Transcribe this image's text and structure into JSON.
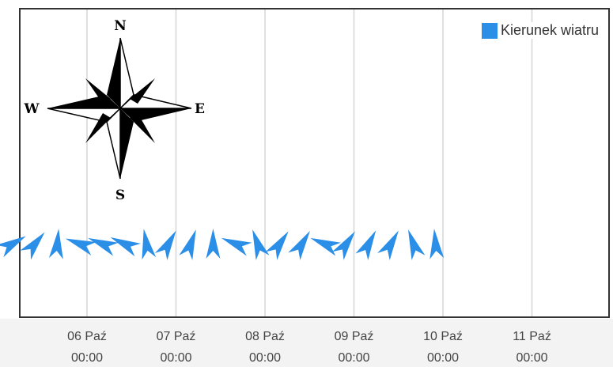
{
  "chart_data": {
    "type": "scatter",
    "title": "",
    "xlabel": "",
    "ylabel": "",
    "x_ticks": [
      {
        "day": "06 Paź",
        "time": "00:00"
      },
      {
        "day": "07 Paź",
        "time": "00:00"
      },
      {
        "day": "08 Paź",
        "time": "00:00"
      },
      {
        "day": "09 Paź",
        "time": "00:00"
      },
      {
        "day": "10 Paź",
        "time": "00:00"
      },
      {
        "day": "11 Paź",
        "time": "00:00"
      }
    ],
    "series": [
      {
        "name": "Kierunek wiatru",
        "color": "#2b8fe8",
        "points": [
          {
            "t": "05 Paź 04:00",
            "direction_deg": 240
          },
          {
            "t": "05 Paź 10:00",
            "direction_deg": 220
          },
          {
            "t": "05 Paź 16:00",
            "direction_deg": 185
          },
          {
            "t": "05 Paź 22:00",
            "direction_deg": 110
          },
          {
            "t": "06 Paź 04:00",
            "direction_deg": 112
          },
          {
            "t": "06 Paź 10:00",
            "direction_deg": 115
          },
          {
            "t": "06 Paź 16:00",
            "direction_deg": 170
          },
          {
            "t": "06 Paź 22:00",
            "direction_deg": 210
          },
          {
            "t": "07 Paź 04:00",
            "direction_deg": 200
          },
          {
            "t": "07 Paź 10:00",
            "direction_deg": 180
          },
          {
            "t": "07 Paź 16:00",
            "direction_deg": 112
          },
          {
            "t": "07 Paź 22:00",
            "direction_deg": 160
          },
          {
            "t": "08 Paź 04:00",
            "direction_deg": 215
          },
          {
            "t": "08 Paź 10:00",
            "direction_deg": 212
          },
          {
            "t": "08 Paź 16:00",
            "direction_deg": 112
          },
          {
            "t": "08 Paź 22:00",
            "direction_deg": 215
          },
          {
            "t": "09 Paź 04:00",
            "direction_deg": 208
          },
          {
            "t": "09 Paź 10:00",
            "direction_deg": 210
          },
          {
            "t": "09 Paź 16:00",
            "direction_deg": 160
          },
          {
            "t": "09 Paź 22:00",
            "direction_deg": 175
          }
        ]
      }
    ],
    "legend": {
      "position": "top-right",
      "label": "Kierunek wiatru",
      "color": "#2b8fe8"
    },
    "grid": {
      "vertical": true,
      "horizontal": false
    },
    "compass": {
      "n": "N",
      "s": "S",
      "e": "E",
      "w": "W"
    }
  }
}
